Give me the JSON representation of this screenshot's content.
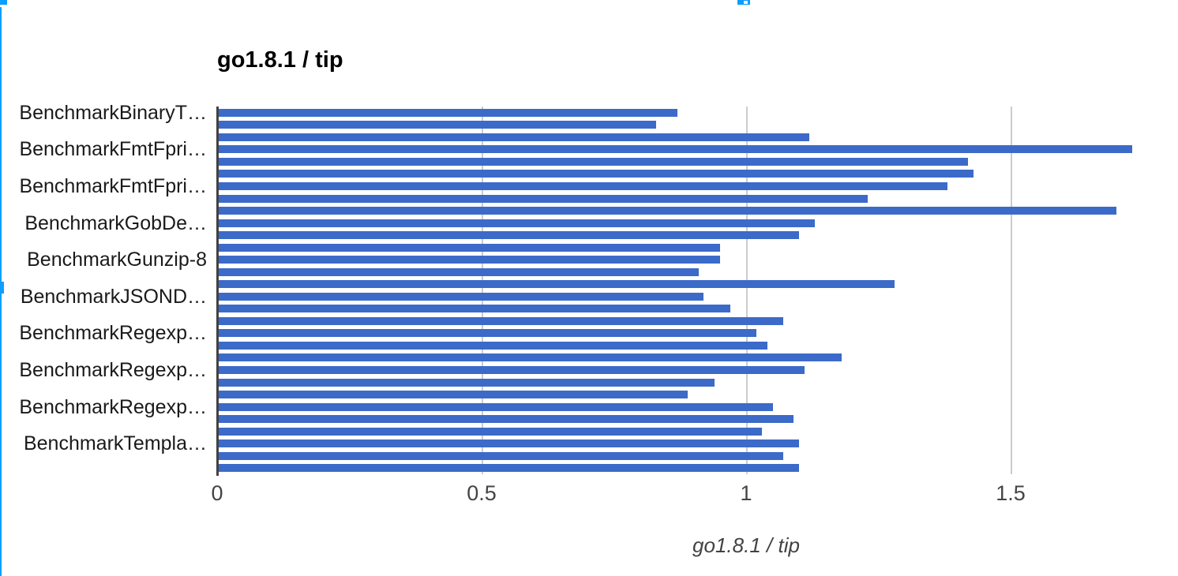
{
  "chart_data": {
    "type": "bar",
    "orientation": "horizontal",
    "title": "go1.8.1 / tip",
    "xlabel": "go1.8.1 / tip",
    "xlim": [
      0,
      2
    ],
    "xticks": [
      0,
      0.5,
      1,
      1.5
    ],
    "xtick_labels": [
      "0",
      "0.5",
      "1",
      "1.5"
    ],
    "grid": true,
    "legend": "none",
    "num_bars": 30,
    "label_every_n_rows": 3,
    "y_axis_labels": [
      "BenchmarkBinaryT…",
      "BenchmarkFmtFpri…",
      "BenchmarkFmtFpri…",
      "BenchmarkGobDe…",
      "BenchmarkGunzip-8",
      "BenchmarkJSOND…",
      "BenchmarkRegexp…",
      "BenchmarkRegexp…",
      "BenchmarkRegexp…",
      "BenchmarkTempla…"
    ],
    "values": [
      0.87,
      0.83,
      1.12,
      1.73,
      1.42,
      1.43,
      1.38,
      1.23,
      1.7,
      1.13,
      1.1,
      0.95,
      0.95,
      0.91,
      1.28,
      0.92,
      0.97,
      1.07,
      1.02,
      1.04,
      1.18,
      1.11,
      0.94,
      0.89,
      1.05,
      1.09,
      1.03,
      1.1,
      1.07,
      1.1
    ],
    "bar_color": "#3c6ac8",
    "gridline_color": "#cccccc",
    "axis_line_color": "#424242"
  },
  "selection": {
    "handle_color": "#0d9eff"
  }
}
